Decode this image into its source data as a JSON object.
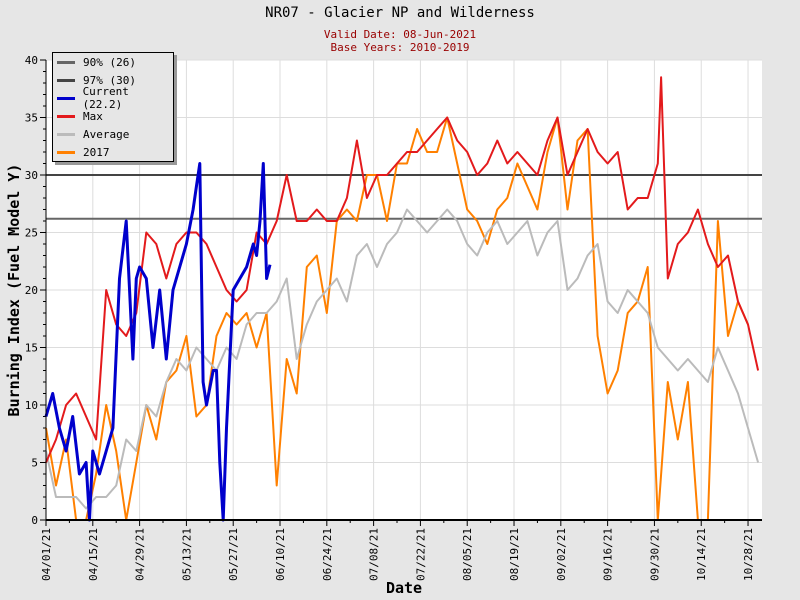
{
  "title": "NR07 - Glacier NP and Wilderness",
  "subtitle1": "Valid Date: 08-Jun-2021",
  "subtitle2": "Base Years: 2010-2019",
  "chart_data": {
    "type": "line",
    "title": "NR07 - Glacier NP and Wilderness",
    "xlabel": "Date",
    "ylabel": "Burning Index (Fuel Model Y)",
    "ylim": [
      0,
      40
    ],
    "yticks": [
      "0",
      "5",
      "10",
      "15",
      "20",
      "25",
      "30",
      "35",
      "40"
    ],
    "xlim_days": [
      0,
      214
    ],
    "xticks": [
      "04/01/21",
      "04/15/21",
      "04/29/21",
      "05/13/21",
      "05/27/21",
      "06/10/21",
      "06/24/21",
      "07/08/21",
      "07/22/21",
      "08/05/21",
      "08/19/21",
      "09/02/21",
      "09/16/21",
      "09/30/21",
      "10/14/21",
      "10/28/21"
    ],
    "x_unit": "days since 04/01",
    "grid": true,
    "legend_position": "top-left",
    "reference_lines": [
      {
        "name": "90% (26)",
        "value": 26.2,
        "color": "#666666"
      },
      {
        "name": "97% (30)",
        "value": 30,
        "color": "#444444"
      }
    ],
    "series": [
      {
        "name": "Current (22.2)",
        "color": "#0000cc",
        "x": [
          0,
          2,
          4,
          6,
          8,
          10,
          12,
          13,
          14,
          16,
          18,
          20,
          22,
          24,
          26,
          27,
          28,
          30,
          32,
          34,
          36,
          38,
          40,
          42,
          44,
          45,
          46,
          47,
          48,
          50,
          51,
          52,
          53,
          54,
          56,
          58,
          60,
          62,
          63,
          64,
          65,
          66,
          67
        ],
        "values": [
          9,
          11,
          8,
          6,
          9,
          4,
          5,
          0,
          6,
          4,
          6,
          8,
          21,
          26,
          14,
          21,
          22,
          21,
          15,
          20,
          14,
          20,
          22,
          24,
          27,
          29,
          31,
          12,
          10,
          13,
          13,
          5,
          0,
          8,
          20,
          21,
          22,
          24,
          23,
          26,
          31,
          21,
          22.2
        ]
      },
      {
        "name": "Max",
        "color": "#e31a1c",
        "x": [
          0,
          3,
          6,
          9,
          12,
          15,
          18,
          21,
          24,
          27,
          30,
          33,
          36,
          39,
          42,
          45,
          48,
          51,
          54,
          57,
          60,
          63,
          66,
          69,
          72,
          75,
          78,
          81,
          84,
          87,
          90,
          93,
          96,
          99,
          102,
          105,
          108,
          111,
          114,
          117,
          120,
          123,
          126,
          129,
          132,
          135,
          138,
          141,
          144,
          147,
          150,
          153,
          156,
          159,
          162,
          165,
          168,
          171,
          174,
          177,
          180,
          183,
          184,
          186,
          189,
          192,
          195,
          198,
          201,
          204,
          207,
          210,
          213
        ],
        "values": [
          5,
          7,
          10,
          11,
          9,
          7,
          20,
          17,
          16,
          18,
          25,
          24,
          21,
          24,
          25,
          25,
          24,
          22,
          20,
          19,
          20,
          25,
          24,
          26,
          30,
          26,
          26,
          27,
          26,
          26,
          28,
          33,
          28,
          30,
          30,
          31,
          32,
          32,
          33,
          34,
          35,
          33,
          32,
          30,
          31,
          33,
          31,
          32,
          31,
          30,
          33,
          35,
          30,
          32,
          34,
          32,
          31,
          32,
          27,
          28,
          28,
          31,
          38.5,
          21,
          24,
          25,
          27,
          24,
          22,
          23,
          19,
          17,
          13
        ]
      },
      {
        "name": "Average",
        "color": "#bbbbbb",
        "x": [
          0,
          3,
          6,
          9,
          12,
          15,
          18,
          21,
          24,
          27,
          30,
          33,
          36,
          39,
          42,
          45,
          48,
          51,
          54,
          57,
          60,
          63,
          66,
          69,
          72,
          75,
          78,
          81,
          84,
          87,
          90,
          93,
          96,
          99,
          102,
          105,
          108,
          111,
          114,
          117,
          120,
          123,
          126,
          129,
          132,
          135,
          138,
          141,
          144,
          147,
          150,
          153,
          156,
          159,
          162,
          165,
          168,
          171,
          174,
          177,
          180,
          183,
          186,
          189,
          192,
          195,
          198,
          201,
          204,
          207,
          210,
          213
        ],
        "values": [
          6,
          2,
          2,
          2,
          1,
          2,
          2,
          3,
          7,
          6,
          10,
          9,
          12,
          14,
          13,
          15,
          14,
          13,
          15,
          14,
          17,
          18,
          18,
          19,
          21,
          14,
          17,
          19,
          20,
          21,
          19,
          23,
          24,
          22,
          24,
          25,
          27,
          26,
          25,
          26,
          27,
          26,
          24,
          23,
          25,
          26,
          24,
          25,
          26,
          23,
          25,
          26,
          20,
          21,
          23,
          24,
          19,
          18,
          20,
          19,
          18,
          15,
          14,
          13,
          14,
          13,
          12,
          15,
          13,
          11,
          8,
          5
        ]
      },
      {
        "name": "2017",
        "color": "#ff8000",
        "x": [
          0,
          3,
          6,
          9,
          12,
          15,
          18,
          21,
          24,
          27,
          30,
          33,
          36,
          39,
          42,
          45,
          48,
          51,
          54,
          57,
          60,
          63,
          66,
          69,
          72,
          75,
          78,
          81,
          84,
          87,
          90,
          93,
          96,
          99,
          102,
          105,
          108,
          111,
          114,
          117,
          120,
          123,
          126,
          129,
          132,
          135,
          138,
          141,
          144,
          147,
          150,
          153,
          156,
          159,
          162,
          165,
          168,
          171,
          174,
          177,
          180,
          183,
          186,
          189,
          192,
          195,
          198,
          201,
          204,
          207,
          210
        ],
        "values": [
          8,
          3,
          7,
          0,
          0,
          4,
          10,
          6,
          0,
          5,
          10,
          7,
          12,
          13,
          16,
          9,
          10,
          16,
          18,
          17,
          18,
          15,
          18,
          3,
          14,
          11,
          22,
          23,
          18,
          26,
          27,
          26,
          30,
          30,
          26,
          31,
          31,
          34,
          32,
          32,
          35,
          31,
          27,
          26,
          24,
          27,
          28,
          31,
          29,
          27,
          32,
          35,
          27,
          33,
          34,
          16,
          11,
          13,
          18,
          19,
          22,
          0,
          12,
          7,
          12,
          0,
          0,
          26,
          16,
          19,
          17
        ]
      }
    ]
  }
}
